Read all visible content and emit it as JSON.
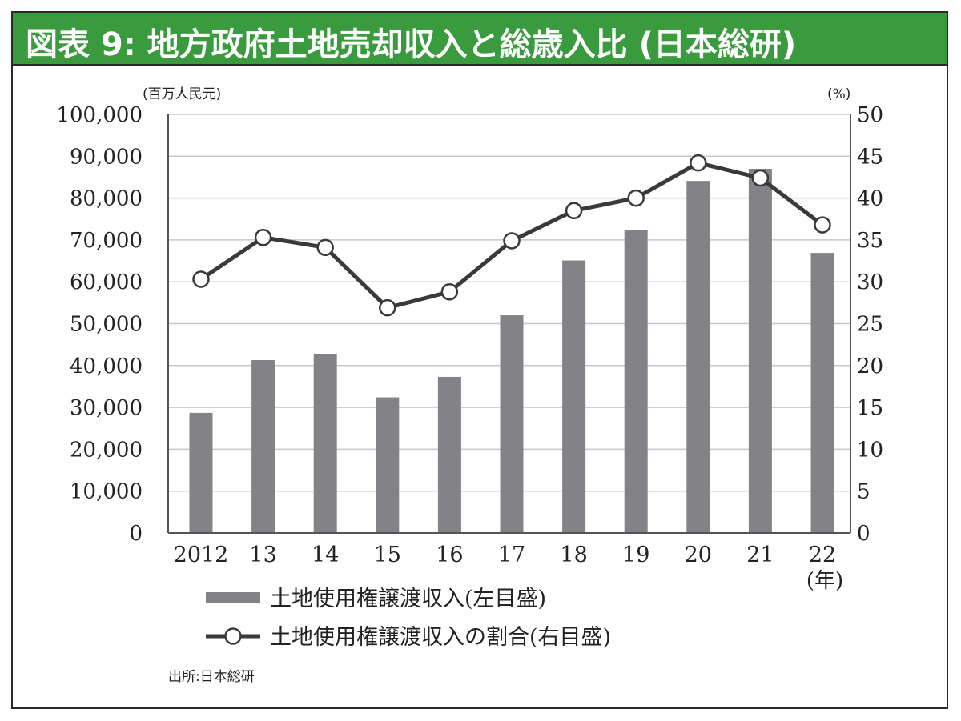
{
  "header": {
    "title": "図表 9: 地方政府土地売却収入と総歳入比 (日本総研)"
  },
  "units": {
    "left": "(百万人民元)",
    "right": "(%)",
    "x": "(年)"
  },
  "legend": {
    "bar": "土地使用権譲渡収入(左目盛)",
    "line": "土地使用権譲渡収入の割合(右目盛)"
  },
  "source": "出所:日本総研",
  "colors": {
    "title_bg": "#3a9a3e",
    "bar": "#838387",
    "line": "#3a3a3a",
    "grid": "#c8c8c8"
  },
  "chart_data": {
    "type": "bar",
    "categories": [
      "2012",
      "13",
      "14",
      "15",
      "16",
      "17",
      "18",
      "19",
      "20",
      "21",
      "22"
    ],
    "series": [
      {
        "name": "土地使用権譲渡収入(左目盛)",
        "type": "bar",
        "axis": "left",
        "values": [
          28700,
          41300,
          42700,
          32400,
          37300,
          52000,
          65100,
          72400,
          84100,
          87000,
          66900
        ]
      },
      {
        "name": "土地使用権譲渡収入の割合(右目盛)",
        "type": "line",
        "axis": "right",
        "values": [
          30.3,
          35.3,
          34.1,
          26.9,
          28.8,
          34.9,
          38.5,
          40.0,
          44.2,
          42.4,
          36.8
        ]
      }
    ],
    "y_left": {
      "lim": [
        0,
        100000
      ],
      "ticks": [
        "0",
        "10,000",
        "20,000",
        "30,000",
        "40,000",
        "50,000",
        "60,000",
        "70,000",
        "80,000",
        "90,000",
        "100,000"
      ]
    },
    "y_right": {
      "lim": [
        0,
        50
      ],
      "ticks": [
        "0",
        "5",
        "10",
        "15",
        "20",
        "25",
        "30",
        "35",
        "40",
        "45",
        "50"
      ]
    },
    "grid": true,
    "legend_position": "bottom"
  }
}
